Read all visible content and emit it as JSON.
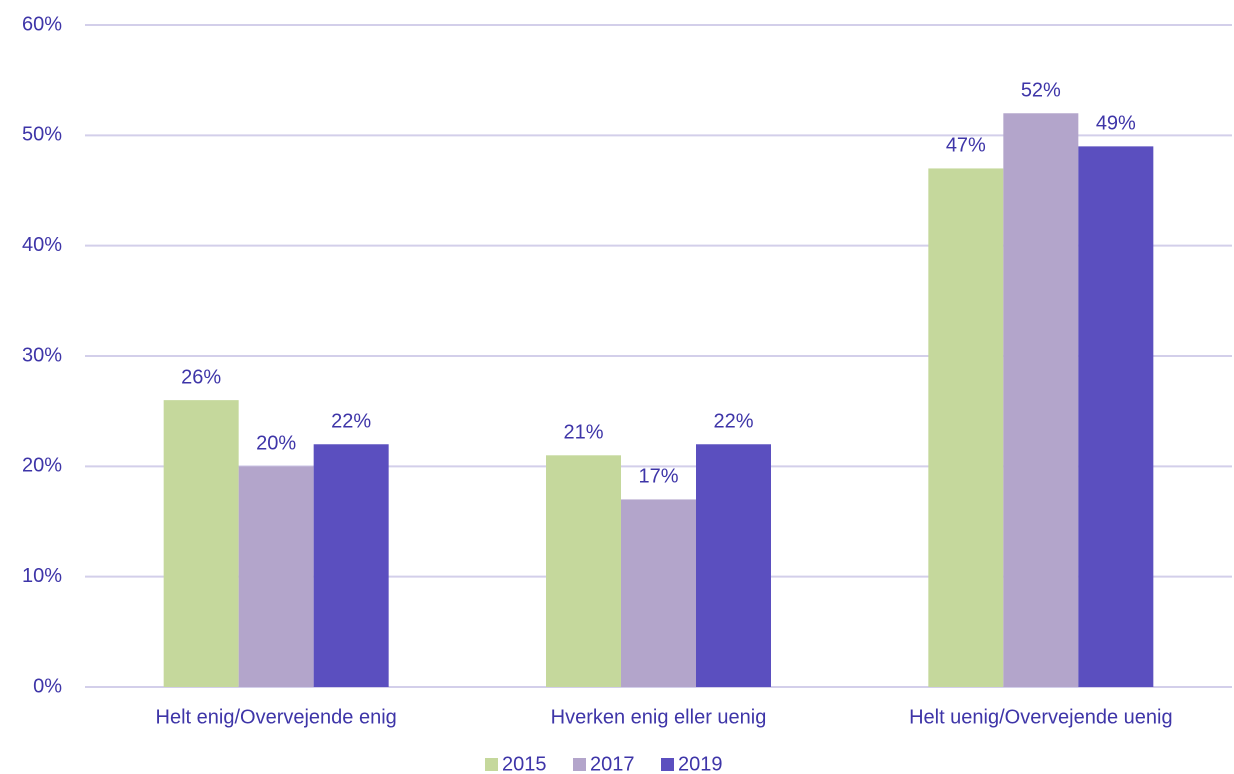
{
  "chart_data": {
    "type": "bar",
    "categories": [
      "Helt enig/Overvejende enig",
      "Hverken enig eller uenig",
      "Helt uenig/Overvejende uenig"
    ],
    "series": [
      {
        "name": "2015",
        "color": "#c5d89c",
        "values": [
          26,
          21,
          47
        ],
        "value_labels": [
          "26%",
          "21%",
          "47%"
        ]
      },
      {
        "name": "2017",
        "color": "#b3a5cb",
        "values": [
          20,
          17,
          52
        ],
        "value_labels": [
          "20%",
          "17%",
          "52%"
        ]
      },
      {
        "name": "2019",
        "color": "#5b4fbf",
        "values": [
          22,
          22,
          49
        ],
        "value_labels": [
          "22%",
          "22%",
          "49%"
        ]
      }
    ],
    "ylim": [
      0,
      60
    ],
    "yticks": [
      {
        "value": 0,
        "label": "0%"
      },
      {
        "value": 10,
        "label": "10%"
      },
      {
        "value": 20,
        "label": "20%"
      },
      {
        "value": 30,
        "label": "30%"
      },
      {
        "value": 40,
        "label": "40%"
      },
      {
        "value": 50,
        "label": "50%"
      },
      {
        "value": 60,
        "label": "60%"
      }
    ],
    "grid": true,
    "legend": "bottom"
  }
}
